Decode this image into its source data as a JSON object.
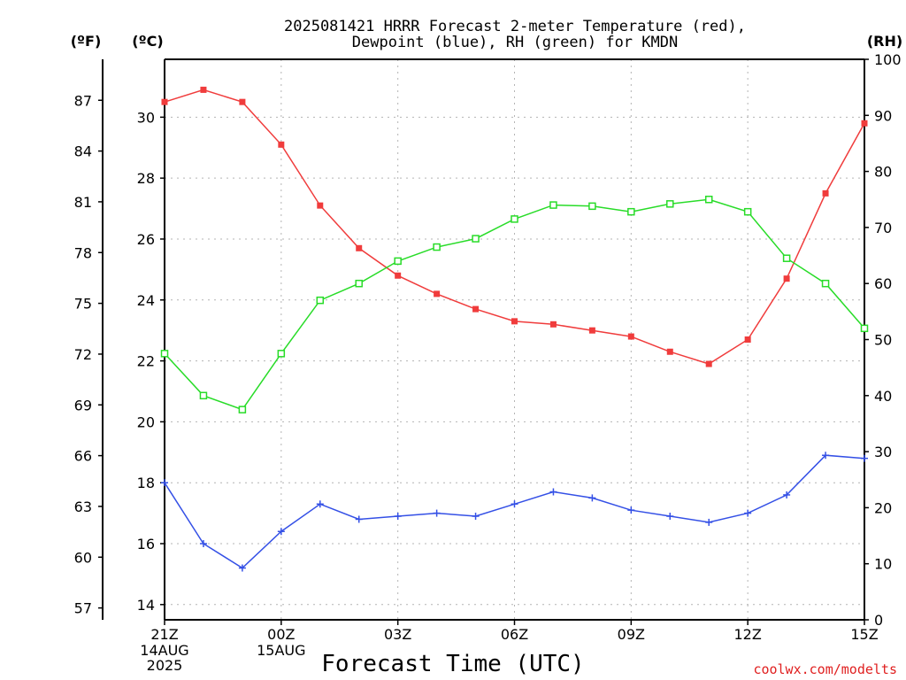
{
  "title_line1": "2025081421 HRRR Forecast 2-meter Temperature (red),",
  "title_line2": "Dewpoint (blue), RH (green) for KMDN",
  "units": {
    "left_f": "(ºF)",
    "left_c": "(ºC)",
    "right_rh": "(RH)"
  },
  "xlabel": "Forecast Time (UTC)",
  "credit": "coolwx.com/modelts",
  "colors": {
    "temperature": "#f03c3c",
    "dewpoint": "#3450e6",
    "rh": "#28dc28",
    "credit": "#e02020"
  },
  "chart_data": {
    "type": "line",
    "x": [
      "21Z",
      "22Z",
      "23Z",
      "00Z",
      "01Z",
      "02Z",
      "03Z",
      "04Z",
      "05Z",
      "06Z",
      "07Z",
      "08Z",
      "09Z",
      "10Z",
      "11Z",
      "12Z",
      "13Z",
      "14Z",
      "15Z"
    ],
    "x_ticks": [
      {
        "label": "21Z",
        "sub": [
          "14AUG",
          "2025"
        ]
      },
      {
        "label": "00Z",
        "sub": [
          "15AUG"
        ]
      },
      {
        "label": "03Z",
        "sub": []
      },
      {
        "label": "06Z",
        "sub": []
      },
      {
        "label": "09Z",
        "sub": []
      },
      {
        "label": "12Z",
        "sub": []
      },
      {
        "label": "15Z",
        "sub": []
      }
    ],
    "celsius_axis": {
      "ylim": [
        13.5,
        31.9
      ],
      "ticks": [
        14,
        16,
        18,
        20,
        22,
        24,
        26,
        28,
        30
      ]
    },
    "fahrenheit_axis": {
      "ticks": [
        57,
        60,
        63,
        66,
        69,
        72,
        75,
        78,
        81,
        84,
        87
      ]
    },
    "rh_axis": {
      "ylim": [
        0,
        100
      ],
      "ticks": [
        0,
        10,
        20,
        30,
        40,
        50,
        60,
        70,
        80,
        90,
        100
      ]
    },
    "grid": true,
    "series": [
      {
        "name": "Temperature",
        "axis": "celsius",
        "marker": "filled-square",
        "values": [
          30.5,
          30.9,
          30.5,
          29.1,
          27.1,
          25.7,
          24.8,
          24.2,
          23.7,
          23.3,
          23.2,
          23.0,
          22.8,
          22.3,
          21.9,
          22.7,
          24.7,
          27.5,
          29.8
        ]
      },
      {
        "name": "Dewpoint",
        "axis": "celsius",
        "marker": "plus",
        "values": [
          18.0,
          16.0,
          15.2,
          16.4,
          17.3,
          16.8,
          16.9,
          17.0,
          16.9,
          17.3,
          17.7,
          17.5,
          17.1,
          16.9,
          16.7,
          17.0,
          17.6,
          18.9,
          18.8
        ]
      },
      {
        "name": "RH",
        "axis": "rh",
        "marker": "open-square",
        "values": [
          47.5,
          40,
          37.5,
          47.5,
          57,
          60,
          64,
          66.5,
          68,
          71.5,
          74,
          73.8,
          72.8,
          74.2,
          75,
          72.8,
          64.5,
          60,
          52
        ]
      }
    ]
  }
}
